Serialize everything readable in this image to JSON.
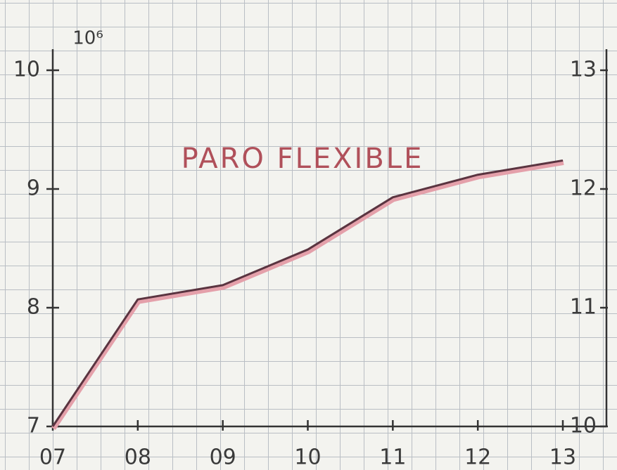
{
  "chart_data": {
    "type": "line",
    "title": "PARO FLEXIBLE",
    "y_label": "10⁶",
    "categories": [
      "07",
      "08",
      "09",
      "10",
      "11",
      "12",
      "13"
    ],
    "series": [
      {
        "name": "PARO FLEXIBLE",
        "color": "#5a3440",
        "values": [
          7.0,
          8.07,
          8.19,
          8.49,
          8.93,
          9.12,
          9.24
        ]
      }
    ],
    "ylim": [
      7,
      10
    ],
    "yticks": [
      7,
      8,
      9,
      10
    ],
    "y2lim": [
      10,
      13
    ],
    "y2ticks": [
      10,
      11,
      12,
      13
    ]
  }
}
